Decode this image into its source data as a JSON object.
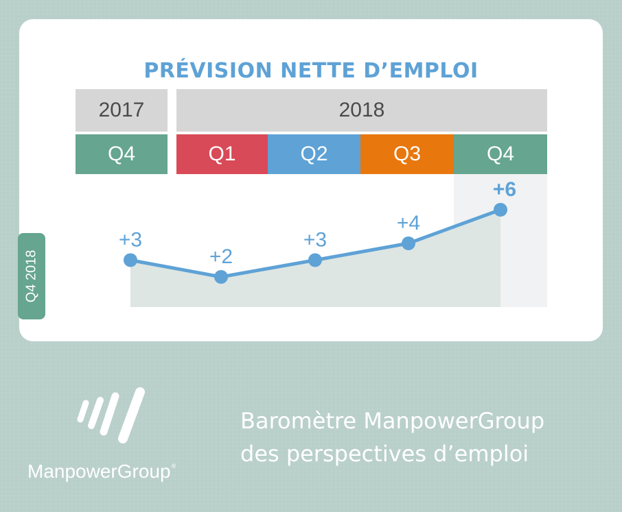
{
  "colors": {
    "background": "#b9cfca",
    "title": "#5ea2d6",
    "line": "#5ea2d6",
    "area": "#dde6e3",
    "year_band": "#d6d6d6",
    "q1": "#d84a57",
    "q2": "#5ea2d6",
    "q3": "#e8770e",
    "q4": "#66a58f",
    "highlight_column": "#f0f2f3"
  },
  "card": {
    "title": "PRÉVISION NETTE D’EMPLOI",
    "side_tab": "Q4 2018"
  },
  "header": {
    "years": [
      "2017",
      "2018"
    ],
    "quarters": [
      "Q4",
      "Q1",
      "Q2",
      "Q3",
      "Q4"
    ]
  },
  "chart_data": {
    "type": "area",
    "title": "PRÉVISION NETTE D’EMPLOI",
    "categories": [
      "Q4 2017",
      "Q1 2018",
      "Q2 2018",
      "Q3 2018",
      "Q4 2018"
    ],
    "values": [
      3,
      2,
      3,
      4,
      6
    ],
    "data_labels": [
      "+3",
      "+2",
      "+3",
      "+4",
      "+6"
    ],
    "highlighted_category": "Q4 2018",
    "grid": false,
    "legend": "none"
  },
  "footer": {
    "logo_name": "ManpowerGroup",
    "logo_icon": "manpowergroup-logo-icon",
    "registered_mark": "®",
    "tagline_line1": "Baromètre ManpowerGroup",
    "tagline_line2": "des perspectives d’emploi"
  }
}
